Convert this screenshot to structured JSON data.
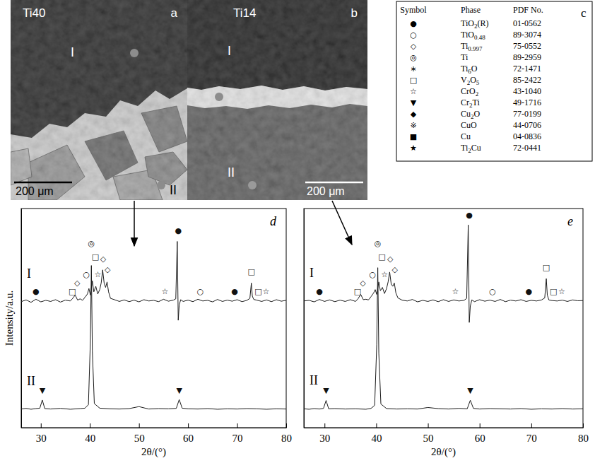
{
  "micrographs": [
    {
      "label": "a",
      "sample": "Ti40",
      "regions": [
        "I",
        "II"
      ],
      "scale_bar": "200 μm"
    },
    {
      "label": "b",
      "sample": "Ti14",
      "regions": [
        "I",
        "II"
      ],
      "scale_bar": "200 μm"
    }
  ],
  "phase_table": {
    "label": "c",
    "header": [
      "Symbol",
      "Phase",
      "PDF No."
    ],
    "rows": [
      [
        "●",
        "TiO2(R)",
        "01-0562"
      ],
      [
        "○",
        "TiO0.48",
        "89-3074"
      ],
      [
        "◇",
        "Ti0.997",
        "75-0552"
      ],
      [
        "◎",
        "Ti",
        "89-2959"
      ],
      [
        "∗",
        "Ti6O",
        "72-1471"
      ],
      [
        "□",
        "V2O5",
        "85-2422"
      ],
      [
        "☆",
        "CrO2",
        "43-1040"
      ],
      [
        "▼",
        "Cr2Ti",
        "49-1716"
      ],
      [
        "◆",
        "Cu2O",
        "77-0199"
      ],
      [
        "※",
        "CuO",
        "44-0706"
      ],
      [
        "■",
        "Cu",
        "04-0836"
      ],
      [
        "★",
        "Ti2Cu",
        "72-0441"
      ]
    ]
  },
  "chart_data": [
    {
      "type": "line",
      "title": "d",
      "x_label": "2θ/(°)",
      "y_label": "Intensity/a.u.",
      "xlim": [
        26,
        80
      ],
      "xticks": [
        30,
        40,
        50,
        60,
        70,
        80
      ],
      "ylim": [
        0,
        100
      ],
      "yticks": [],
      "tick_labels": "x",
      "series": [
        {
          "name": "I",
          "color": "#1a1a1a",
          "x": [
            26,
            27,
            28,
            29,
            30,
            31,
            32,
            33,
            34,
            35,
            36,
            36.5,
            37,
            37.5,
            38,
            38.5,
            39,
            39.5,
            39.8,
            40.1,
            40.5,
            40.8,
            41.2,
            41.6,
            42,
            42.3,
            42.6,
            42.9,
            43.2,
            43.5,
            43.8,
            44.2,
            45,
            46,
            47,
            48,
            49,
            50,
            51,
            52,
            53,
            54,
            55,
            56,
            57,
            57.5,
            57.8,
            58,
            58.2,
            58.5,
            59,
            60,
            61,
            62,
            63,
            64,
            65,
            66,
            67,
            68,
            69,
            70,
            71,
            72,
            72.6,
            72.9,
            73.1,
            73.4,
            74,
            75,
            76,
            77,
            78,
            79,
            80
          ],
          "values": [
            57.5,
            58.3,
            57.2,
            58.6,
            57.4,
            58.1,
            57.6,
            58.4,
            57.3,
            58.2,
            57.8,
            59.0,
            60.5,
            58.2,
            58.8,
            58.1,
            59.5,
            61,
            63.5,
            60.5,
            67,
            62,
            64.5,
            61,
            63,
            66,
            72,
            66,
            64,
            66.5,
            62,
            59,
            58.4,
            57.6,
            58.3,
            57.5,
            58.2,
            57.4,
            58.4,
            57.8,
            58.1,
            57.5,
            58.6,
            57.7,
            58.2,
            58.8,
            85,
            49,
            56,
            58.4,
            57.6,
            58.2,
            57.5,
            58.6,
            57.8,
            58.1,
            57.4,
            58.5,
            57.6,
            58.2,
            57.7,
            58.4,
            57.5,
            58.1,
            59,
            66,
            60,
            58.5,
            58.2,
            57.6,
            58.3,
            57.5,
            58.4,
            57.7,
            58.1
          ]
        },
        {
          "name": "II",
          "color": "#1a1a1a",
          "x": [
            26,
            27,
            28,
            29,
            29.8,
            30.3,
            30.8,
            32,
            34,
            36,
            38,
            39,
            39.7,
            40.1,
            40.3,
            40.5,
            40.9,
            42,
            44,
            46,
            48,
            50,
            52,
            54,
            56,
            57.6,
            58.2,
            58.8,
            60,
            62,
            64,
            66,
            68,
            70,
            72,
            74,
            76,
            78,
            80
          ],
          "values": [
            8.5,
            8.8,
            8.4,
            8.7,
            8.9,
            12.6,
            8.7,
            8.5,
            8.8,
            8.4,
            8.7,
            8.9,
            10.5,
            40,
            74,
            35,
            11,
            8.9,
            8.6,
            8.5,
            8.7,
            9.6,
            8.5,
            8.7,
            8.6,
            8.8,
            12.8,
            8.9,
            8.6,
            8.5,
            8.7,
            8.4,
            8.6,
            8.5,
            8.7,
            8.6,
            8.4,
            8.6,
            8.5
          ]
        }
      ],
      "annotations": [
        {
          "text": "●",
          "x": 29,
          "y": 62
        },
        {
          "text": "□",
          "x": 36.4,
          "y": 62
        },
        {
          "text": "◇",
          "x": 37.4,
          "y": 66
        },
        {
          "text": "○",
          "x": 39.3,
          "y": 70
        },
        {
          "text": "□",
          "x": 41.1,
          "y": 78
        },
        {
          "text": "☆",
          "x": 41.6,
          "y": 70
        },
        {
          "text": "◇",
          "x": 42.7,
          "y": 77
        },
        {
          "text": "◇",
          "x": 43.6,
          "y": 72
        },
        {
          "text": "☆",
          "x": 55.3,
          "y": 62
        },
        {
          "text": "●",
          "x": 58,
          "y": 90
        },
        {
          "text": "○",
          "x": 62.5,
          "y": 62
        },
        {
          "text": "●",
          "x": 69.5,
          "y": 62
        },
        {
          "text": "□",
          "x": 72.9,
          "y": 71
        },
        {
          "text": "□",
          "x": 74.3,
          "y": 62
        },
        {
          "text": "☆",
          "x": 75.9,
          "y": 62
        },
        {
          "text": "▼",
          "x": 30.3,
          "y": 17
        },
        {
          "text": "◎",
          "x": 40.3,
          "y": 84
        },
        {
          "text": "▼",
          "x": 58.2,
          "y": 17
        }
      ]
    },
    {
      "type": "line",
      "title": "e",
      "x_label": "2θ/(°)",
      "xlim": [
        26,
        80
      ],
      "xticks": [
        30,
        40,
        50,
        60,
        70,
        80
      ],
      "ylim": [
        0,
        100
      ],
      "yticks": [],
      "tick_labels": "x",
      "series": [
        {
          "name": "I",
          "color": "#1a1a1a",
          "x": [
            26,
            27,
            28,
            29,
            30,
            31,
            32,
            33,
            34,
            35,
            36,
            36.5,
            37,
            37.5,
            38,
            38.5,
            39,
            39.5,
            39.8,
            40.1,
            40.5,
            40.8,
            41.2,
            41.6,
            42,
            42.3,
            42.6,
            42.9,
            43.2,
            43.5,
            43.8,
            44.2,
            45,
            46,
            47,
            48,
            49,
            50,
            51,
            52,
            53,
            54,
            55,
            56,
            57,
            57.5,
            57.8,
            58,
            58.2,
            58.5,
            59,
            60,
            61,
            62,
            63,
            64,
            65,
            66,
            67,
            68,
            69,
            70,
            71,
            72,
            72.6,
            72.9,
            73.1,
            73.4,
            74,
            75,
            76,
            77,
            78,
            79,
            80
          ],
          "values": [
            57.8,
            58.1,
            57.4,
            58.5,
            57.6,
            58.3,
            57.5,
            58.2,
            57.6,
            58.4,
            57.6,
            58.9,
            60.8,
            58.4,
            58.6,
            58.3,
            59.8,
            61.5,
            63,
            60.8,
            66.5,
            62.5,
            64,
            61.2,
            63.5,
            66.5,
            71,
            65.5,
            64.5,
            66,
            61.5,
            59.2,
            58.2,
            57.8,
            58.5,
            57.4,
            58.1,
            57.6,
            58.3,
            57.5,
            58.4,
            57.6,
            58.3,
            57.8,
            58.1,
            59,
            92.5,
            48,
            55.5,
            58.3,
            57.5,
            58.4,
            57.7,
            58.2,
            57.6,
            58.5,
            57.5,
            58.2,
            57.8,
            58.4,
            57.6,
            58.1,
            57.8,
            58.3,
            59.2,
            68,
            60.5,
            58.3,
            58,
            57.8,
            58.2,
            57.6,
            58.3,
            57.9,
            58
          ]
        },
        {
          "name": "II",
          "color": "#1a1a1a",
          "x": [
            26,
            27,
            28,
            29,
            29.8,
            30.3,
            30.8,
            32,
            34,
            36,
            38,
            39,
            39.7,
            40.1,
            40.3,
            40.5,
            40.9,
            42,
            44,
            46,
            48,
            50,
            52,
            54,
            56,
            57.6,
            58.2,
            58.8,
            60,
            62,
            64,
            66,
            68,
            70,
            72,
            74,
            76,
            78,
            80
          ],
          "values": [
            8.6,
            8.4,
            8.7,
            8.5,
            8.8,
            12.4,
            8.6,
            8.7,
            8.5,
            8.6,
            8.4,
            8.8,
            10.2,
            38,
            73,
            34,
            10.8,
            8.7,
            8.5,
            8.6,
            8.5,
            9.2,
            8.7,
            8.5,
            8.8,
            8.6,
            12.5,
            8.8,
            8.5,
            8.7,
            8.6,
            8.5,
            8.7,
            8.4,
            8.6,
            8.5,
            8.7,
            8.5,
            8.6
          ]
        }
      ],
      "annotations": [
        {
          "text": "●",
          "x": 29,
          "y": 62
        },
        {
          "text": "□",
          "x": 36.4,
          "y": 62
        },
        {
          "text": "◇",
          "x": 37.4,
          "y": 66
        },
        {
          "text": "○",
          "x": 39.3,
          "y": 70
        },
        {
          "text": "□",
          "x": 41.1,
          "y": 78
        },
        {
          "text": "☆",
          "x": 41.6,
          "y": 70
        },
        {
          "text": "◇",
          "x": 42.7,
          "y": 77
        },
        {
          "text": "◇",
          "x": 43.6,
          "y": 72
        },
        {
          "text": "☆",
          "x": 55.3,
          "y": 62
        },
        {
          "text": "●",
          "x": 58,
          "y": 97
        },
        {
          "text": "○",
          "x": 62.5,
          "y": 62
        },
        {
          "text": "●",
          "x": 69.5,
          "y": 62
        },
        {
          "text": "□",
          "x": 72.9,
          "y": 73
        },
        {
          "text": "□",
          "x": 74.3,
          "y": 62
        },
        {
          "text": "☆",
          "x": 75.9,
          "y": 62
        },
        {
          "text": "▼",
          "x": 30.3,
          "y": 17
        },
        {
          "text": "◎",
          "x": 40.3,
          "y": 84
        },
        {
          "text": "▼",
          "x": 58.2,
          "y": 17
        }
      ]
    }
  ]
}
